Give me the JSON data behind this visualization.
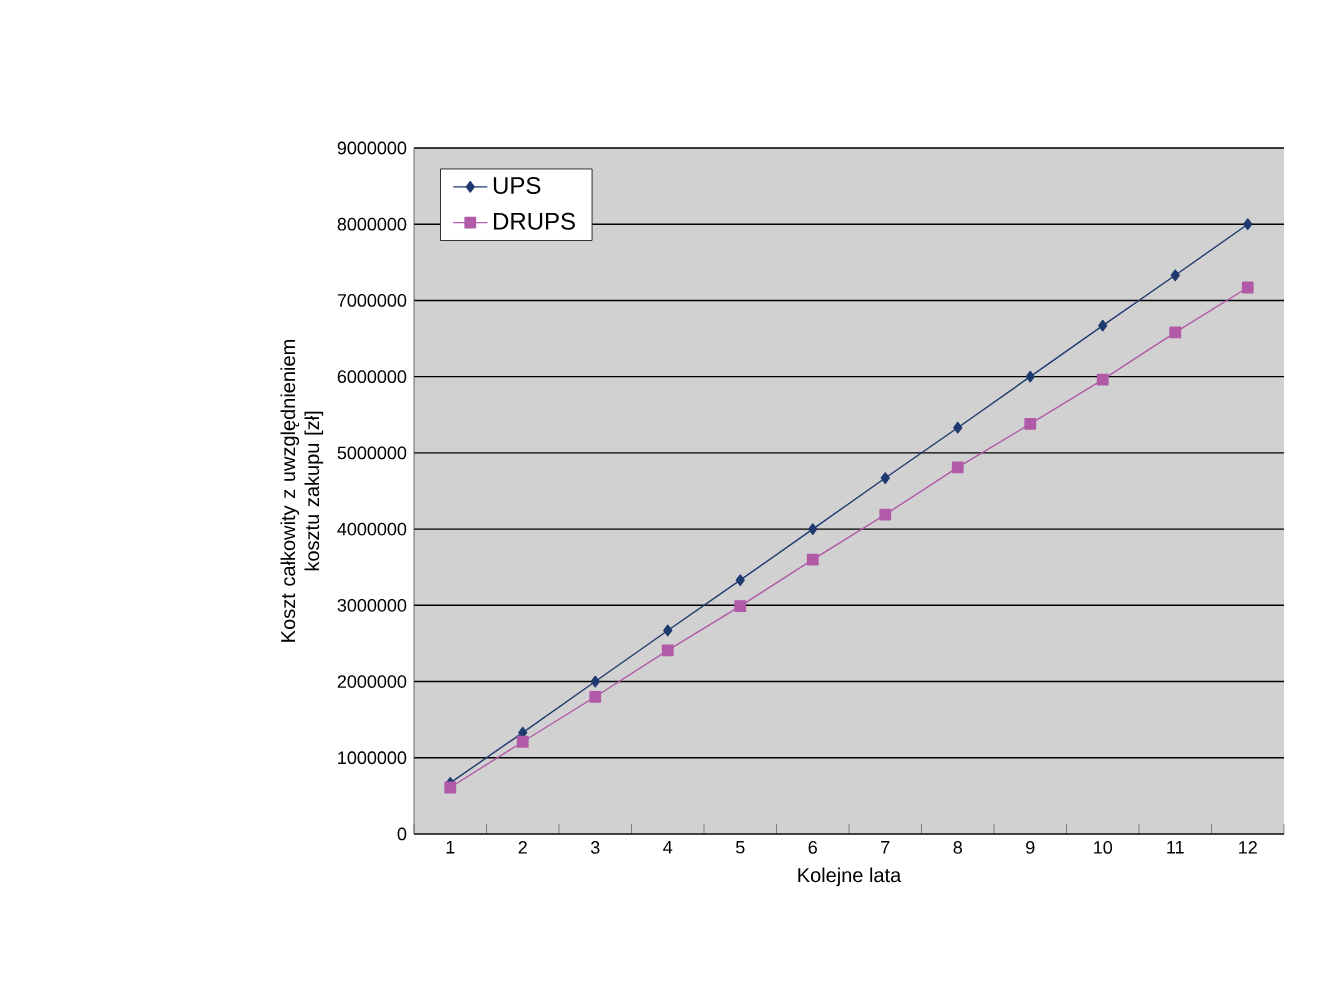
{
  "chart_data": {
    "type": "line",
    "xlabel": "Kolejne lata",
    "ylabel": "Koszt całkowity z uwzględnieniem kosztu zakupu [zł]",
    "categories": [
      "1",
      "2",
      "3",
      "4",
      "5",
      "6",
      "7",
      "8",
      "9",
      "10",
      "11",
      "12"
    ],
    "series": [
      {
        "name": "UPS",
        "color": "#1f3a6e",
        "marker": "diamond",
        "values": [
          670000,
          1330000,
          2000000,
          2670000,
          3330000,
          4000000,
          4670000,
          5330000,
          6000000,
          6670000,
          7330000,
          8000000
        ]
      },
      {
        "name": "DRUPS",
        "color": "#b05aa8",
        "marker": "square",
        "values": [
          610000,
          1210000,
          1800000,
          2410000,
          2990000,
          3600000,
          4190000,
          4810000,
          5380000,
          5960000,
          6580000,
          7170000
        ]
      }
    ],
    "ylim": [
      0,
      9000000
    ],
    "yticks": [
      0,
      1000000,
      2000000,
      3000000,
      4000000,
      5000000,
      6000000,
      7000000,
      8000000,
      9000000
    ],
    "grid": "y",
    "legend": "top left",
    "line_style": "solid"
  }
}
